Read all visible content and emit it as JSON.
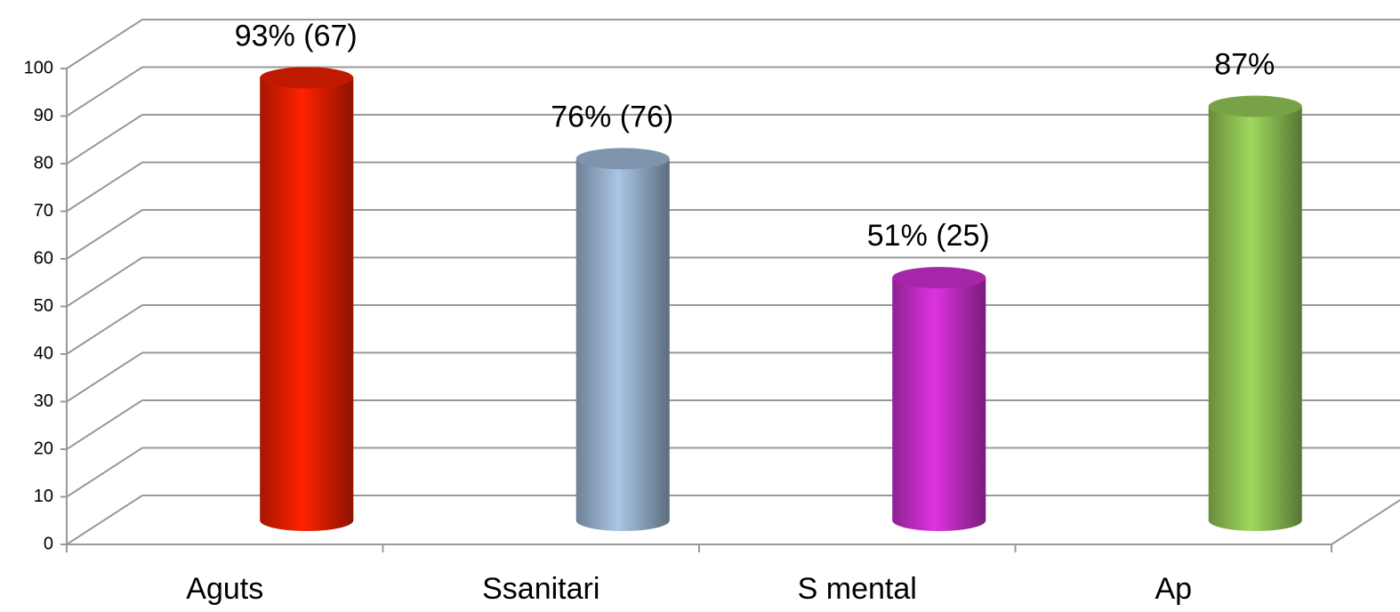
{
  "chart_data": {
    "type": "bar",
    "categories": [
      "Aguts",
      "Ssanitari",
      "S mental",
      "Ap"
    ],
    "values": [
      93,
      76,
      51,
      87
    ],
    "value_labels": [
      "93%   (67)",
      "76%  (76)",
      "51%  (25)",
      "87%"
    ],
    "colors": [
      "#ff2200",
      "#a9c6e6",
      "#dd33e0",
      "#9fd85e"
    ],
    "ylim": [
      0,
      100
    ],
    "yticks": [
      0,
      10,
      20,
      30,
      40,
      50,
      60,
      70,
      80,
      90,
      100
    ],
    "grid": true
  }
}
